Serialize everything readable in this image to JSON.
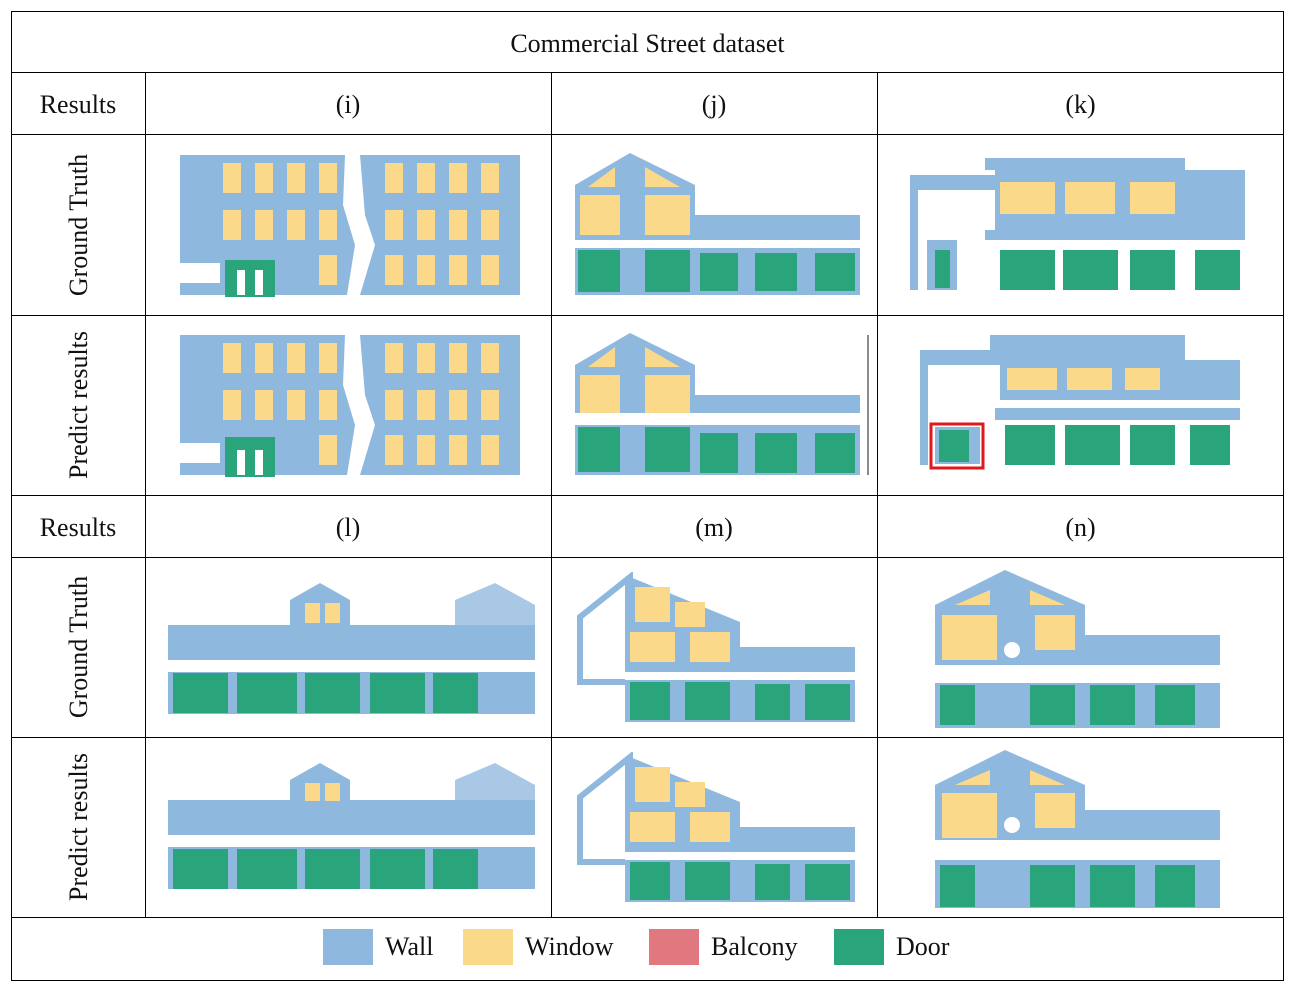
{
  "title": "Commercial Street dataset",
  "sections": [
    {
      "header": "Results",
      "columns": [
        "(i)",
        "(j)",
        "(k)"
      ]
    },
    {
      "header": "Results",
      "columns": [
        "(l)",
        "(m)",
        "(n)"
      ]
    }
  ],
  "row_labels": {
    "ground_truth": "Ground Truth",
    "predict": "Predict results"
  },
  "legend": [
    {
      "label": "Wall",
      "color": "#8fb8de"
    },
    {
      "label": "Window",
      "color": "#fbd98a"
    },
    {
      "label": "Balcony",
      "color": "#e1787f"
    },
    {
      "label": "Door",
      "color": "#2aa47a"
    }
  ],
  "colors": {
    "wall": "#8fb8de",
    "window": "#fbd98a",
    "door": "#2aa47a",
    "highlight": "#e0191f"
  }
}
